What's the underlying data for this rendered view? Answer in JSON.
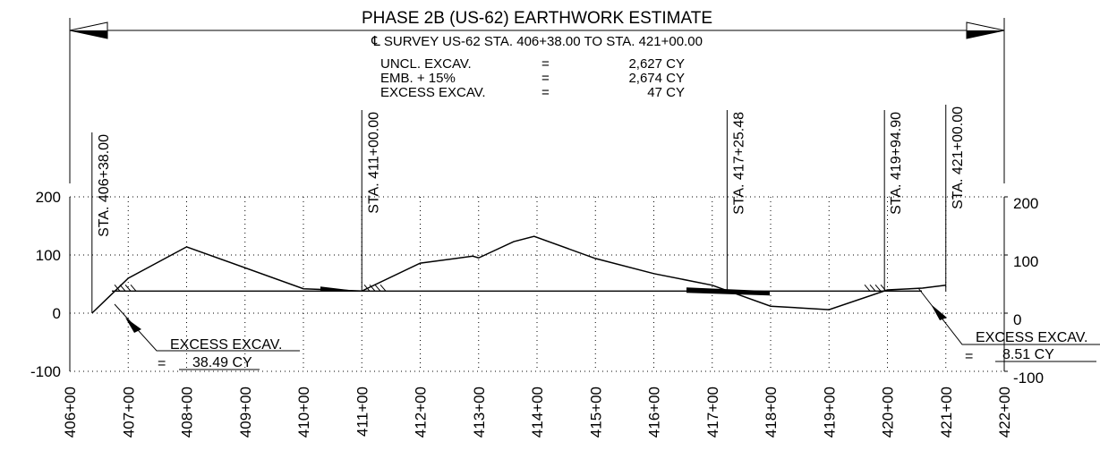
{
  "chart_data": {
    "type": "line",
    "title": "PHASE 2B (US-62) EARTHWORK ESTIMATE",
    "subtitle": "℄ SURVEY US-62 STA. 406+38.00 TO STA. 421+00.00",
    "summary": [
      [
        "UNCL. EXCAV.",
        "=",
        "2,627 CY"
      ],
      [
        "EMB. + 15%",
        "=",
        "2,674 CY"
      ],
      [
        "EXCESS EXCAV.",
        "=",
        "47 CY"
      ]
    ],
    "series": [
      {
        "color": "#000000",
        "x": [
          406.38,
          407,
          408,
          410,
          411,
          412,
          412.9,
          413,
          413.6,
          413.95,
          415,
          416,
          417,
          418,
          419,
          420,
          420.6,
          421
        ],
        "values": [
          0,
          60,
          114,
          42,
          38,
          86,
          98,
          95,
          123,
          132,
          94,
          68,
          48,
          12,
          6,
          40,
          43,
          48
        ]
      }
    ],
    "balance": 38,
    "stations": [
      {
        "label": "STA. 406+38.00",
        "x": 406.38
      },
      {
        "label": "STA. 411+00.00",
        "x": 411
      },
      {
        "label": "STA. 417+25.48",
        "x": 417.2548
      },
      {
        "label": "STA. 419+94.90",
        "x": 419.949
      },
      {
        "label": "STA. 421+00.00",
        "x": 421
      }
    ],
    "callouts": [
      {
        "label": "EXCESS EXCAV.",
        "eq": "=",
        "value": "38.49 CY"
      },
      {
        "label": "EXCESS EXCAV.",
        "eq": "=",
        "value": "8.51 CY"
      }
    ],
    "xlim": [
      406,
      422
    ],
    "xticks": [
      {
        "value": 406,
        "label": "406+00"
      },
      {
        "value": 407,
        "label": "407+00"
      },
      {
        "value": 408,
        "label": "408+00"
      },
      {
        "value": 409,
        "label": "409+00"
      },
      {
        "value": 410,
        "label": "410+00"
      },
      {
        "value": 411,
        "label": "411+00"
      },
      {
        "value": 412,
        "label": "412+00"
      },
      {
        "value": 413,
        "label": "413+00"
      },
      {
        "value": 414,
        "label": "414+00"
      },
      {
        "value": 415,
        "label": "415+00"
      },
      {
        "value": 416,
        "label": "416+00"
      },
      {
        "value": 417,
        "label": "417+00"
      },
      {
        "value": 418,
        "label": "418+00"
      },
      {
        "value": 419,
        "label": "419+00"
      },
      {
        "value": 420,
        "label": "420+00"
      },
      {
        "value": 421,
        "label": "421+00"
      },
      {
        "value": 422,
        "label": "422+00"
      }
    ],
    "ylim": [
      -100,
      200
    ],
    "yticks": [
      -100,
      0,
      100,
      200
    ],
    "y2lim": [
      -100,
      200
    ],
    "y2ticks": [
      -100,
      0,
      100,
      200
    ],
    "grid": true
  }
}
